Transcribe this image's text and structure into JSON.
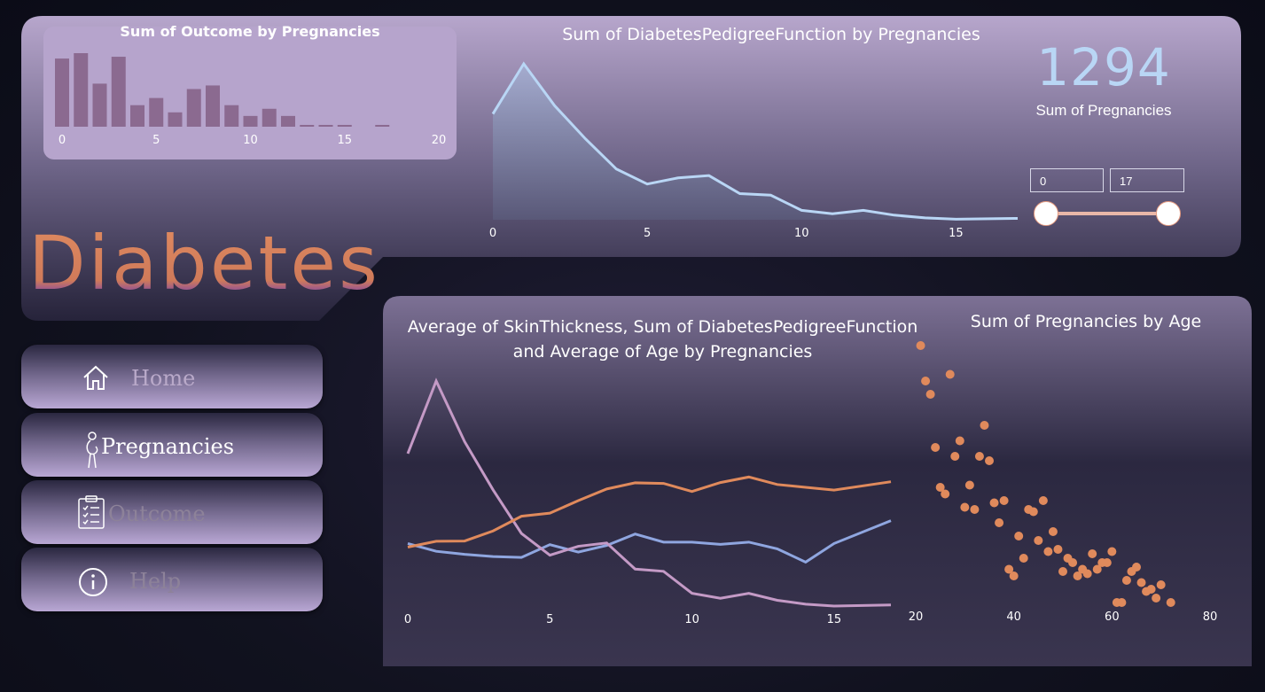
{
  "nav": {
    "items": [
      {
        "label": "Home",
        "icon": "home-icon",
        "color": "#b9a9c9"
      },
      {
        "label": "Pregnancies",
        "icon": "pregnancy-icon",
        "color": "#ffffff"
      },
      {
        "label": "Outcome",
        "icon": "clipboard-icon",
        "color": "#8d8299"
      },
      {
        "label": "Help",
        "icon": "info-icon",
        "color": "#8d8299"
      }
    ]
  },
  "brand": {
    "title": "Diabetes"
  },
  "kpi": {
    "value": "1294",
    "label": "Sum of Pregnancies"
  },
  "slider": {
    "min": "0",
    "max": "17",
    "accent": "#e9b7a8"
  },
  "chart_data": [
    {
      "type": "bar",
      "title": "Sum of Outcome by Pregnancies",
      "x": [
        0,
        1,
        2,
        3,
        4,
        5,
        6,
        7,
        8,
        9,
        10,
        11,
        12,
        13,
        14,
        15,
        17
      ],
      "values": [
        38,
        41,
        24,
        39,
        12,
        16,
        8,
        21,
        23,
        12,
        6,
        10,
        6,
        1,
        1,
        1,
        1
      ],
      "xticks": [
        "0",
        "5",
        "10",
        "15",
        "20"
      ],
      "xlim": [
        0,
        20
      ],
      "color": "#8b6a90"
    },
    {
      "type": "area",
      "title": "Sum of DiabetesPedigreeFunction by Pregnancies",
      "x": [
        0,
        1,
        2,
        3,
        4,
        5,
        6,
        7,
        8,
        9,
        10,
        11,
        12,
        13,
        14,
        15,
        17
      ],
      "values": [
        55.1,
        81.2,
        59.4,
        42.1,
        26.4,
        18.6,
        21.8,
        23.0,
        13.6,
        12.8,
        4.9,
        3.1,
        4.9,
        2.4,
        1.0,
        0.3,
        0.7
      ],
      "xticks": [
        "0",
        "5",
        "10",
        "15"
      ],
      "color": "#b9d6f5"
    },
    {
      "type": "line",
      "title": "Average of SkinThickness, Sum of DiabetesPedigreeFunction and Average of Age by Pregnancies",
      "x": [
        0,
        1,
        2,
        3,
        4,
        5,
        6,
        7,
        8,
        9,
        10,
        11,
        12,
        13,
        14,
        15,
        17
      ],
      "xticks": [
        "0",
        "5",
        "10",
        "15"
      ],
      "series": [
        {
          "values": [
            22.8,
            20.0,
            18.9,
            18.1,
            17.8,
            22.4,
            19.7,
            22.1,
            26.2,
            23.3,
            23.3,
            22.5,
            23.3,
            20.9,
            16.1,
            22.8,
            31.0
          ],
          "color": "#8fa6e0"
        },
        {
          "values": [
            55.1,
            81.2,
            59.4,
            42.1,
            26.4,
            18.6,
            21.8,
            23.0,
            13.6,
            12.8,
            4.9,
            3.1,
            4.9,
            2.4,
            1.0,
            0.3,
            0.7
          ],
          "color": "#c49ac6"
        },
        {
          "values": [
            21.5,
            23.6,
            23.7,
            27.3,
            32.6,
            33.7,
            38.2,
            42.4,
            44.6,
            44.4,
            41.5,
            44.7,
            46.7,
            44.0,
            43.0,
            42.0,
            45.0
          ],
          "color": "#e08a5c"
        }
      ]
    },
    {
      "type": "scatter",
      "title": "Sum of Pregnancies by Age",
      "xticks": [
        "20",
        "40",
        "60",
        "80"
      ],
      "xlim": [
        20,
        80
      ],
      "points": [
        [
          21,
          118
        ],
        [
          22,
          102
        ],
        [
          23,
          96
        ],
        [
          24,
          72
        ],
        [
          25,
          54
        ],
        [
          26,
          51
        ],
        [
          27,
          105
        ],
        [
          28,
          68
        ],
        [
          29,
          75
        ],
        [
          30,
          45
        ],
        [
          31,
          55
        ],
        [
          32,
          44
        ],
        [
          33,
          68
        ],
        [
          34,
          82
        ],
        [
          35,
          66
        ],
        [
          36,
          47
        ],
        [
          37,
          38
        ],
        [
          38,
          48
        ],
        [
          39,
          17
        ],
        [
          40,
          14
        ],
        [
          41,
          32
        ],
        [
          42,
          22
        ],
        [
          43,
          44
        ],
        [
          44,
          43
        ],
        [
          45,
          30
        ],
        [
          46,
          48
        ],
        [
          47,
          25
        ],
        [
          48,
          34
        ],
        [
          49,
          26
        ],
        [
          50,
          16
        ],
        [
          51,
          22
        ],
        [
          52,
          20
        ],
        [
          53,
          14
        ],
        [
          54,
          17
        ],
        [
          55,
          15
        ],
        [
          56,
          24
        ],
        [
          57,
          17
        ],
        [
          58,
          20
        ],
        [
          59,
          20
        ],
        [
          60,
          25
        ],
        [
          61,
          2
        ],
        [
          62,
          2
        ],
        [
          63,
          12
        ],
        [
          64,
          16
        ],
        [
          65,
          18
        ],
        [
          66,
          11
        ],
        [
          67,
          7
        ],
        [
          68,
          8
        ],
        [
          69,
          4
        ],
        [
          70,
          10
        ],
        [
          72,
          2
        ]
      ],
      "color": "#e08a5c"
    }
  ]
}
